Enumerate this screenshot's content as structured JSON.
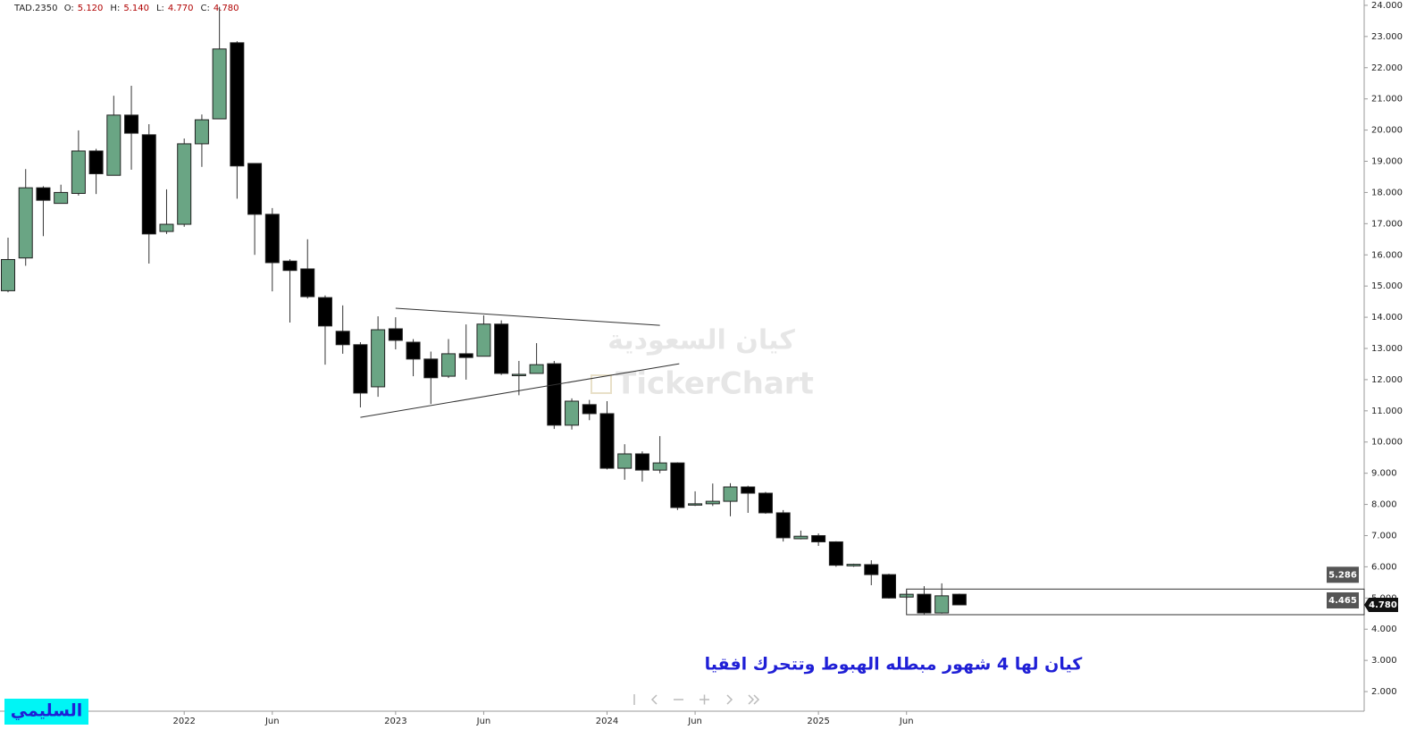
{
  "header": {
    "symbol": "TAD.2350",
    "fields": [
      {
        "label": "O:",
        "value": "5.120"
      },
      {
        "label": "H:",
        "value": "5.140"
      },
      {
        "label": "L:",
        "value": "4.770"
      },
      {
        "label": "C:",
        "value": "4.780"
      }
    ]
  },
  "chart_data": {
    "type": "candlestick",
    "categories": [
      null,
      null,
      null,
      null,
      null,
      null,
      null,
      null,
      null,
      null,
      "2022",
      null,
      null,
      null,
      null,
      "Jun",
      null,
      null,
      null,
      null,
      null,
      null,
      "2023",
      null,
      null,
      null,
      null,
      "Jun",
      null,
      null,
      null,
      null,
      null,
      null,
      "2024",
      null,
      null,
      null,
      null,
      "Jun",
      null,
      null,
      null,
      null,
      null,
      null,
      "2025",
      null,
      null,
      null,
      null,
      "Jun",
      null,
      null,
      null
    ],
    "open": [
      14.85,
      15.9,
      18.15,
      17.65,
      17.97,
      19.33,
      18.55,
      20.48,
      19.85,
      16.75,
      16.98,
      19.56,
      20.36,
      22.8,
      18.93,
      17.3,
      15.8,
      15.55,
      14.63,
      13.55,
      13.12,
      11.77,
      13.63,
      13.2,
      12.66,
      12.11,
      12.83,
      12.75,
      13.78,
      12.15,
      12.2,
      12.51,
      10.54,
      11.2,
      10.91,
      9.16,
      9.62,
      9.1,
      9.33,
      7.98,
      8.02,
      8.1,
      8.56,
      8.36,
      7.73,
      6.9,
      7.0,
      6.8,
      6.03,
      6.07,
      5.75,
      5.03,
      5.12,
      4.52,
      5.12
    ],
    "high": [
      16.55,
      18.75,
      18.2,
      18.25,
      19.99,
      19.4,
      21.1,
      21.42,
      20.19,
      18.1,
      19.73,
      20.5,
      23.95,
      22.85,
      18.93,
      17.5,
      15.86,
      16.5,
      14.7,
      14.38,
      13.2,
      14.03,
      14.0,
      13.3,
      12.9,
      13.3,
      13.77,
      14.06,
      13.9,
      12.6,
      13.17,
      12.6,
      11.4,
      11.35,
      11.31,
      9.93,
      9.7,
      10.19,
      9.35,
      8.42,
      8.67,
      8.68,
      8.6,
      8.4,
      7.82,
      7.16,
      7.07,
      6.82,
      6.1,
      6.21,
      5.78,
      5.24,
      5.38,
      5.47,
      5.14
    ],
    "low": [
      14.8,
      15.65,
      16.6,
      17.65,
      17.9,
      17.95,
      18.55,
      18.73,
      15.72,
      16.67,
      16.9,
      18.82,
      20.36,
      17.8,
      16.0,
      14.83,
      13.83,
      14.6,
      12.48,
      12.83,
      11.11,
      11.45,
      12.97,
      12.11,
      11.22,
      12.05,
      12.0,
      12.75,
      12.15,
      11.5,
      12.2,
      10.42,
      10.4,
      10.7,
      9.12,
      8.79,
      8.73,
      9.0,
      7.82,
      7.95,
      7.95,
      7.62,
      7.73,
      7.7,
      6.81,
      6.88,
      6.67,
      6.0,
      6.0,
      5.41,
      4.98,
      4.97,
      4.48,
      4.5,
      4.77
    ],
    "close": [
      15.85,
      18.15,
      17.75,
      18.0,
      19.33,
      18.6,
      20.48,
      19.9,
      16.67,
      16.98,
      19.56,
      20.33,
      22.6,
      18.85,
      17.3,
      15.75,
      15.5,
      14.66,
      13.72,
      13.12,
      11.57,
      13.6,
      13.26,
      12.66,
      12.06,
      12.83,
      12.71,
      13.78,
      12.2,
      12.17,
      12.48,
      10.54,
      11.31,
      10.91,
      9.16,
      9.62,
      9.1,
      9.33,
      7.9,
      8.02,
      8.1,
      8.56,
      8.36,
      7.73,
      6.93,
      6.98,
      6.8,
      6.05,
      6.08,
      5.75,
      5.0,
      5.12,
      4.52,
      5.07,
      4.78
    ],
    "up_color": "#6aa584",
    "down_color": "#000000",
    "ylim": [
      1.4,
      24.17
    ],
    "yticks": [
      {
        "value": 2,
        "label": "2.000"
      },
      {
        "value": 3,
        "label": "3.000"
      },
      {
        "value": 4,
        "label": "4.000"
      },
      {
        "value": 5,
        "label": "5.000"
      },
      {
        "value": 6,
        "label": "6.000"
      },
      {
        "value": 7,
        "label": "7.000"
      },
      {
        "value": 8,
        "label": "8.000"
      },
      {
        "value": 9,
        "label": "9.000"
      },
      {
        "value": 10,
        "label": "10.000"
      },
      {
        "value": 11,
        "label": "11.000"
      },
      {
        "value": 12,
        "label": "12.000"
      },
      {
        "value": 13,
        "label": "13.000"
      },
      {
        "value": 14,
        "label": "14.000"
      },
      {
        "value": 15,
        "label": "15.000"
      },
      {
        "value": 16,
        "label": "16.000"
      },
      {
        "value": 17,
        "label": "17.000"
      },
      {
        "value": 18,
        "label": "18.000"
      },
      {
        "value": 19,
        "label": "19.000"
      },
      {
        "value": 20,
        "label": "20.000"
      },
      {
        "value": 21,
        "label": "21.000"
      },
      {
        "value": 22,
        "label": "22.000"
      },
      {
        "value": 23,
        "label": "23.000"
      },
      {
        "value": 24,
        "label": "24.000"
      }
    ],
    "last_price": {
      "value": 4.78,
      "label": "4.780"
    },
    "trendlines": [
      {
        "x": [
          22,
          37
        ],
        "y": [
          14.29,
          13.74
        ]
      },
      {
        "x": [
          20,
          38.1
        ],
        "y": [
          10.79,
          12.51
        ]
      }
    ],
    "zone": {
      "start": 51,
      "top": 5.286,
      "bottom": 4.465
    },
    "annotation": "كيان لها 4 شهور مبطله الهبوط وتتحرك افقيا",
    "watermark": [
      "كيان السعودية",
      "TickerChart"
    ],
    "signature": "السليمي"
  }
}
